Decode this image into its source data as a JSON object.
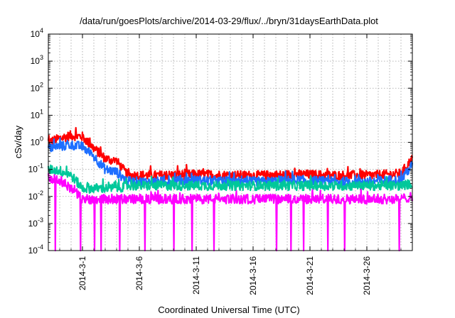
{
  "chart_data": {
    "type": "line",
    "title": "/data/run/goesPlots/archive/2014-03-29/flux/../bryn/31daysEarthData.plot",
    "xlabel": "Coordinated Universal Time (UTC)",
    "ylabel": "cSv/day",
    "y_scale": "log",
    "ylim": [
      0.0001,
      10000
    ],
    "y_ticks": [
      {
        "base": "10",
        "exp": "-4"
      },
      {
        "base": "10",
        "exp": "-3"
      },
      {
        "base": "10",
        "exp": "-2"
      },
      {
        "base": "10",
        "exp": "-1"
      },
      {
        "base": "10",
        "exp": "0"
      },
      {
        "base": "10",
        "exp": "1"
      },
      {
        "base": "10",
        "exp": "2"
      },
      {
        "base": "10",
        "exp": "3"
      },
      {
        "base": "10",
        "exp": "4"
      }
    ],
    "xlim": [
      "2014-02-26",
      "2014-03-30"
    ],
    "x_tick_labels": [
      "2014-3-1",
      "2014-3-6",
      "2014-3-11",
      "2014-3-16",
      "2014-3-21",
      "2014-3-26"
    ],
    "grid": true,
    "legend": "none",
    "series": [
      {
        "color": "#ff0000",
        "x": [
          "2014-02-26",
          "2014-02-27",
          "2014-02-28",
          "2014-03-01",
          "2014-03-02",
          "2014-03-03",
          "2014-03-04",
          "2014-03-05",
          "2014-03-06",
          "2014-03-08",
          "2014-03-11",
          "2014-03-14",
          "2014-03-17",
          "2014-03-20",
          "2014-03-23",
          "2014-03-26",
          "2014-03-28",
          "2014-03-29",
          "2014-03-30"
        ],
        "y": [
          1.0,
          1.4,
          1.8,
          1.6,
          0.6,
          0.25,
          0.2,
          0.06,
          0.06,
          0.06,
          0.065,
          0.06,
          0.06,
          0.065,
          0.06,
          0.06,
          0.065,
          0.07,
          0.25
        ]
      },
      {
        "color": "#1e6fff",
        "x": [
          "2014-02-26",
          "2014-02-27",
          "2014-02-28",
          "2014-03-01",
          "2014-03-02",
          "2014-03-03",
          "2014-03-04",
          "2014-03-05",
          "2014-03-06",
          "2014-03-08",
          "2014-03-11",
          "2014-03-14",
          "2014-03-17",
          "2014-03-20",
          "2014-03-23",
          "2014-03-26",
          "2014-03-28",
          "2014-03-29",
          "2014-03-30"
        ],
        "y": [
          0.6,
          0.7,
          0.8,
          0.7,
          0.3,
          0.1,
          0.08,
          0.035,
          0.035,
          0.035,
          0.04,
          0.035,
          0.035,
          0.04,
          0.035,
          0.035,
          0.04,
          0.04,
          0.15
        ]
      },
      {
        "color": "#00c89a",
        "x": [
          "2014-02-26",
          "2014-02-27",
          "2014-02-28",
          "2014-03-01",
          "2014-03-02",
          "2014-03-03",
          "2014-03-04",
          "2014-03-05",
          "2014-03-06",
          "2014-03-08",
          "2014-03-11",
          "2014-03-14",
          "2014-03-17",
          "2014-03-20",
          "2014-03-23",
          "2014-03-26",
          "2014-03-28",
          "2014-03-29",
          "2014-03-30"
        ],
        "y": [
          0.1,
          0.09,
          0.06,
          0.02,
          0.02,
          0.02,
          0.02,
          0.025,
          0.025,
          0.025,
          0.025,
          0.025,
          0.025,
          0.025,
          0.025,
          0.025,
          0.025,
          0.025,
          0.03
        ]
      },
      {
        "color": "#ff00ff",
        "x": [
          "2014-02-26",
          "2014-02-27",
          "2014-02-28",
          "2014-03-01",
          "2014-03-02",
          "2014-03-03",
          "2014-03-04",
          "2014-03-05",
          "2014-03-06",
          "2014-03-08",
          "2014-03-11",
          "2014-03-14",
          "2014-03-17",
          "2014-03-20",
          "2014-03-23",
          "2014-03-26",
          "2014-03-28",
          "2014-03-29",
          "2014-03-30"
        ],
        "y": [
          0.05,
          0.04,
          0.02,
          0.008,
          0.008,
          0.008,
          0.008,
          0.008,
          0.008,
          0.008,
          0.008,
          0.008,
          0.008,
          0.008,
          0.008,
          0.008,
          0.008,
          0.008,
          0.01
        ]
      }
    ]
  }
}
